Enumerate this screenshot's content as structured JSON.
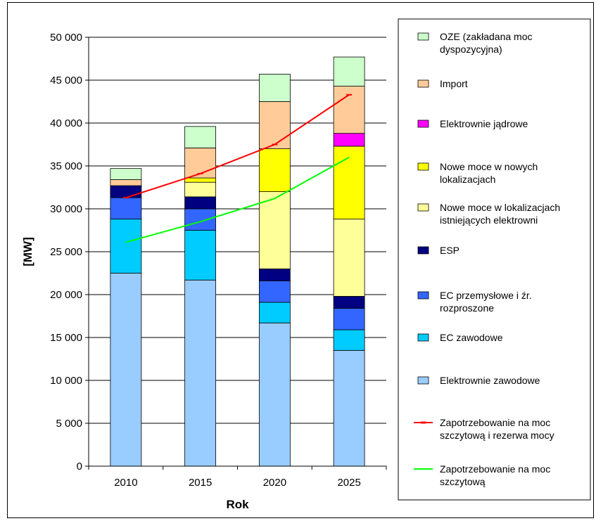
{
  "chart_data": {
    "type": "bar",
    "stacked": true,
    "xlabel": "Rok",
    "ylabel": "[MW]",
    "ylim": [
      0,
      50000
    ],
    "y_ticks": [
      0,
      5000,
      10000,
      15000,
      20000,
      25000,
      30000,
      35000,
      40000,
      45000,
      50000
    ],
    "y_tick_labels": [
      "0",
      "5 000",
      "10 000",
      "15 000",
      "20 000",
      "25 000",
      "30 000",
      "35 000",
      "40 000",
      "45 000",
      "50 000"
    ],
    "categories": [
      "2010",
      "2015",
      "2020",
      "2025"
    ],
    "grid": "horizontal",
    "legend_position": "right",
    "series": [
      {
        "name": "Elektrownie zawodowe",
        "kind": "bar",
        "color": "#99ccff",
        "values": [
          22500,
          21700,
          16700,
          13500
        ]
      },
      {
        "name": "EC zawodowe",
        "kind": "bar",
        "color": "#00ccff",
        "values": [
          6300,
          5800,
          2400,
          2400
        ]
      },
      {
        "name": "EC przemysłowe i źr. rozproszone",
        "kind": "bar",
        "color": "#3366ff",
        "values": [
          2500,
          2500,
          2500,
          2500
        ]
      },
      {
        "name": "ESP",
        "kind": "bar",
        "color": "#000080",
        "values": [
          1400,
          1400,
          1400,
          1400
        ]
      },
      {
        "name": "Nowe moce w lokalizacjach istniejących elektrowni",
        "kind": "bar",
        "color": "#ffff99",
        "values": [
          0,
          1700,
          9000,
          9000
        ]
      },
      {
        "name": "Nowe moce w nowych lokalizacjach",
        "kind": "bar",
        "color": "#ffff00",
        "values": [
          0,
          500,
          5000,
          8500
        ]
      },
      {
        "name": "Elektrownie jądrowe",
        "kind": "bar",
        "color": "#ff00ff",
        "values": [
          0,
          0,
          0,
          1500
        ]
      },
      {
        "name": "Import",
        "kind": "bar",
        "color": "#ffcc99",
        "values": [
          700,
          3500,
          5500,
          5500
        ]
      },
      {
        "name": "OZE (zakładana moc dyspozycyjna)",
        "kind": "bar",
        "color": "#ccffcc",
        "values": [
          1300,
          2500,
          3200,
          3400
        ]
      },
      {
        "name": "Zapotrzebowanie na moc szczytową i rezerwa mocy",
        "kind": "line",
        "color": "#ff0000",
        "marker": "dash",
        "values": [
          31300,
          34100,
          37500,
          43300
        ]
      },
      {
        "name": "Zapotrzebowanie na moc szczytową",
        "kind": "line",
        "color": "#00ff00",
        "marker": "none",
        "values": [
          26100,
          28500,
          31200,
          36000
        ]
      }
    ],
    "legend": [
      {
        "lines": [
          "OZE (zakładana moc",
          "dyspozycyjna)"
        ],
        "kind": "bar",
        "color": "#ccffcc"
      },
      {
        "lines": [
          "Import"
        ],
        "kind": "bar",
        "color": "#ffcc99"
      },
      {
        "lines": [
          "Elektrownie jądrowe"
        ],
        "kind": "bar",
        "color": "#ff00ff"
      },
      {
        "lines": [
          "Nowe moce w nowych",
          "lokalizacjach"
        ],
        "kind": "bar",
        "color": "#ffff00"
      },
      {
        "lines": [
          "Nowe moce w lokalizacjach",
          "istniejących elektrowni"
        ],
        "kind": "bar",
        "color": "#ffff99"
      },
      {
        "lines": [
          "ESP"
        ],
        "kind": "bar",
        "color": "#000080"
      },
      {
        "lines": [
          "EC przemysłowe i źr.",
          "rozproszone"
        ],
        "kind": "bar",
        "color": "#3366ff"
      },
      {
        "lines": [
          "EC zawodowe"
        ],
        "kind": "bar",
        "color": "#00ccff"
      },
      {
        "lines": [
          "Elektrownie zawodowe"
        ],
        "kind": "bar",
        "color": "#99ccff"
      },
      {
        "lines": [
          "Zapotrzebowanie na moc",
          "szczytową i rezerwa mocy"
        ],
        "kind": "line",
        "color": "#ff0000"
      },
      {
        "lines": [
          "Zapotrzebowanie na moc",
          "szczytową"
        ],
        "kind": "line",
        "color": "#00ff00"
      }
    ]
  }
}
